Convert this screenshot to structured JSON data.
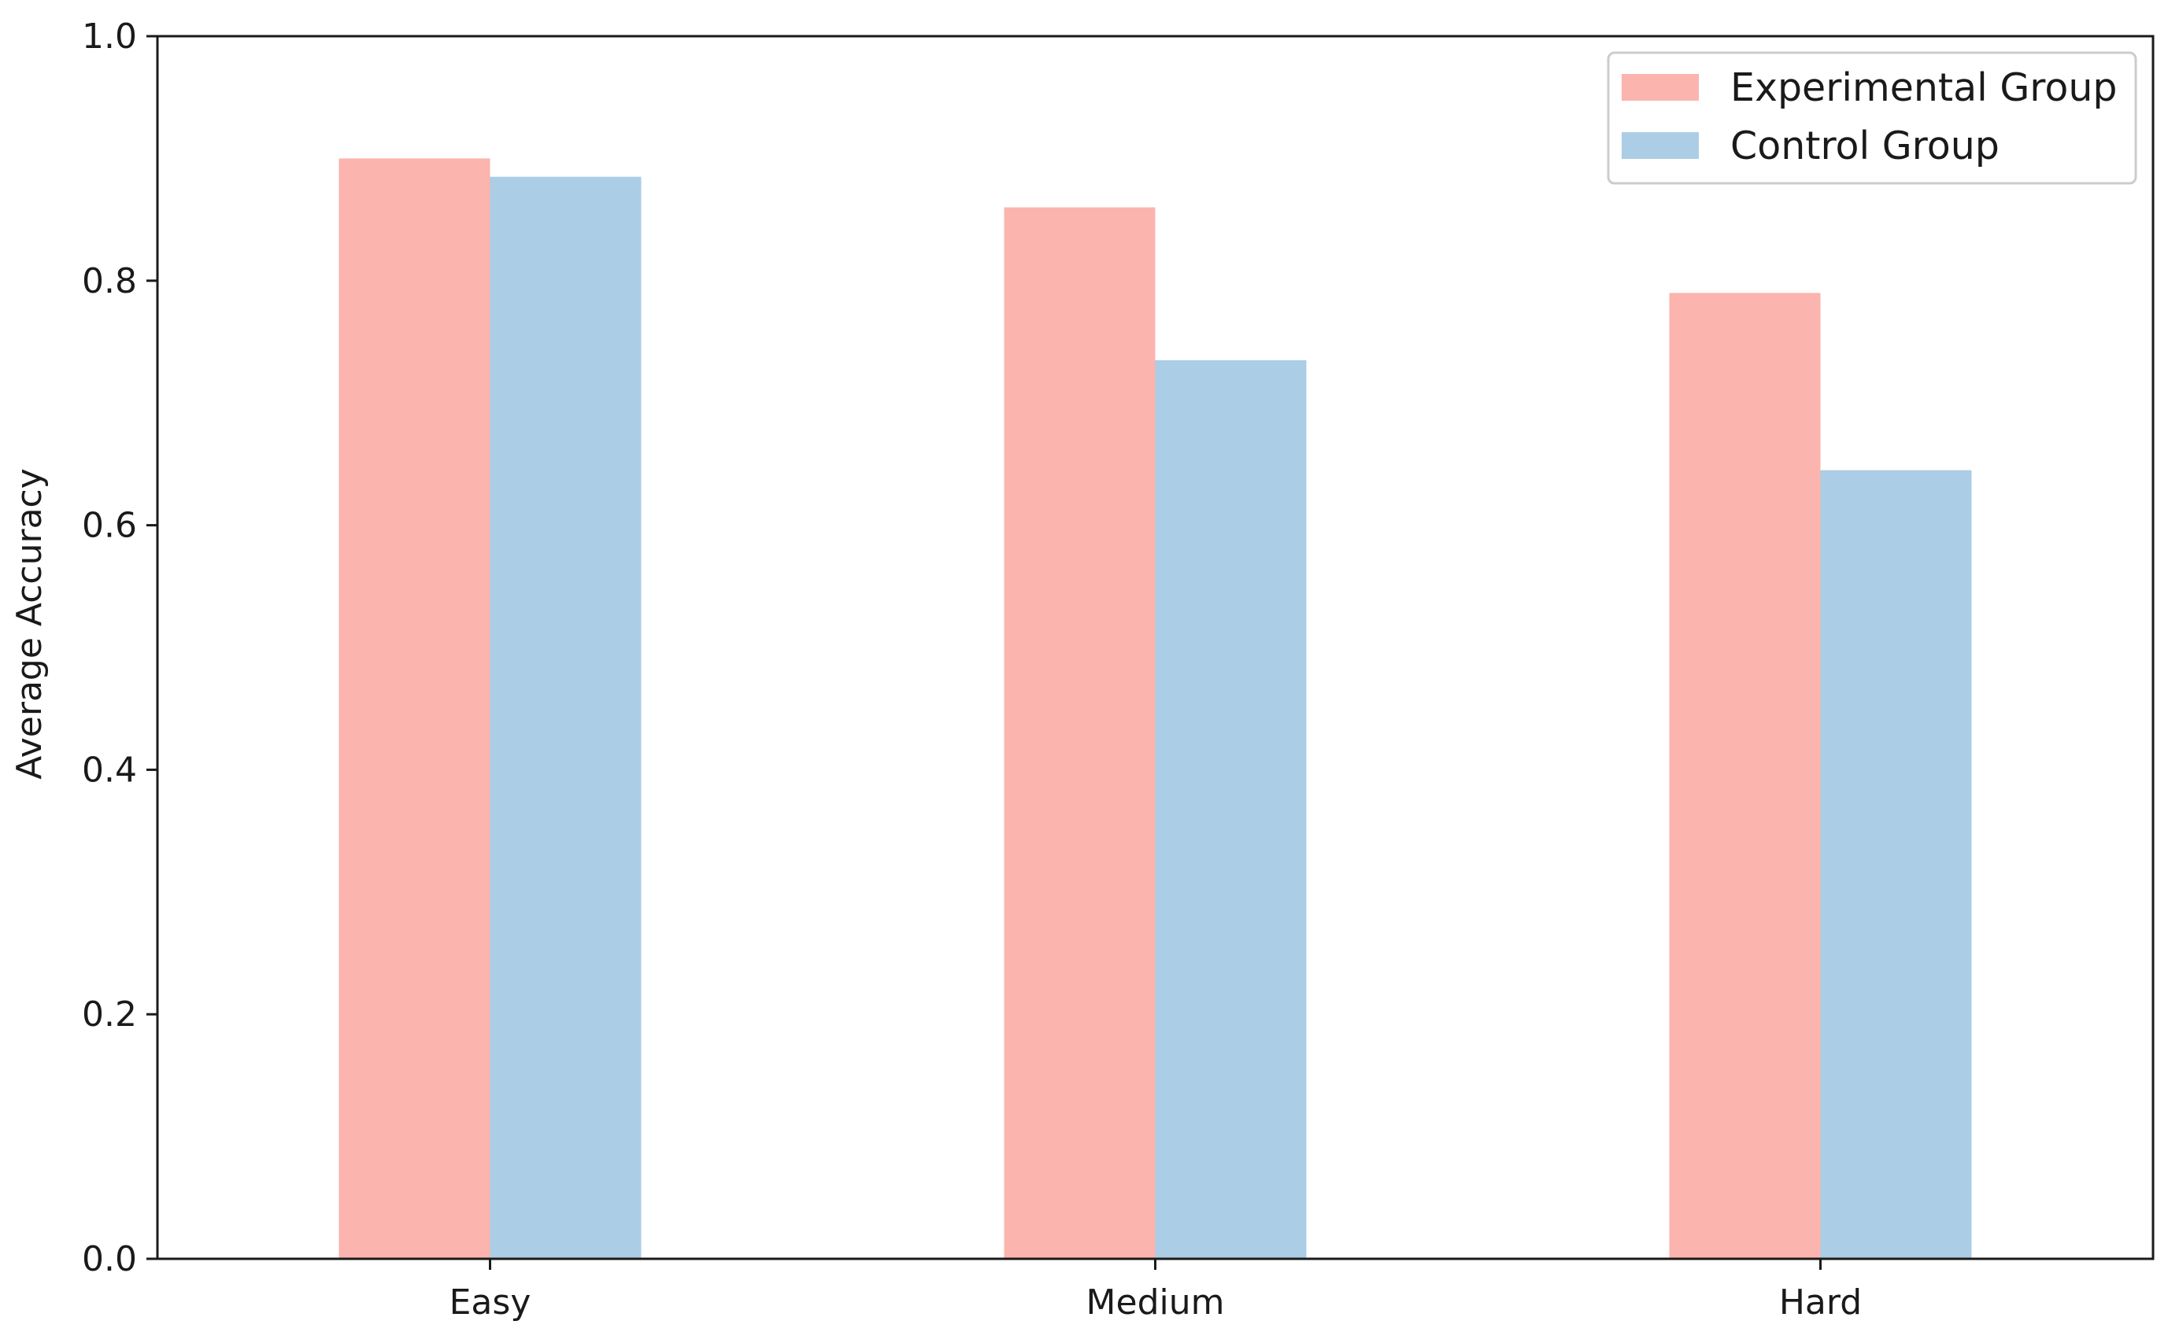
{
  "chart_data": {
    "type": "bar",
    "title": "",
    "xlabel": "",
    "ylabel": "Average Accuracy",
    "categories": [
      "Easy",
      "Medium",
      "Hard"
    ],
    "series": [
      {
        "name": "Experimental Group",
        "values": [
          0.9,
          0.86,
          0.79
        ],
        "color": "#fbb4ae"
      },
      {
        "name": "Control Group",
        "values": [
          0.885,
          0.735,
          0.645
        ],
        "color": "#abcde5"
      }
    ],
    "ylim": [
      0,
      1.0
    ],
    "yticks": [
      "0.0",
      "0.2",
      "0.4",
      "0.6",
      "0.8",
      "1.0"
    ],
    "grid": false,
    "legend_position": "top-right"
  }
}
